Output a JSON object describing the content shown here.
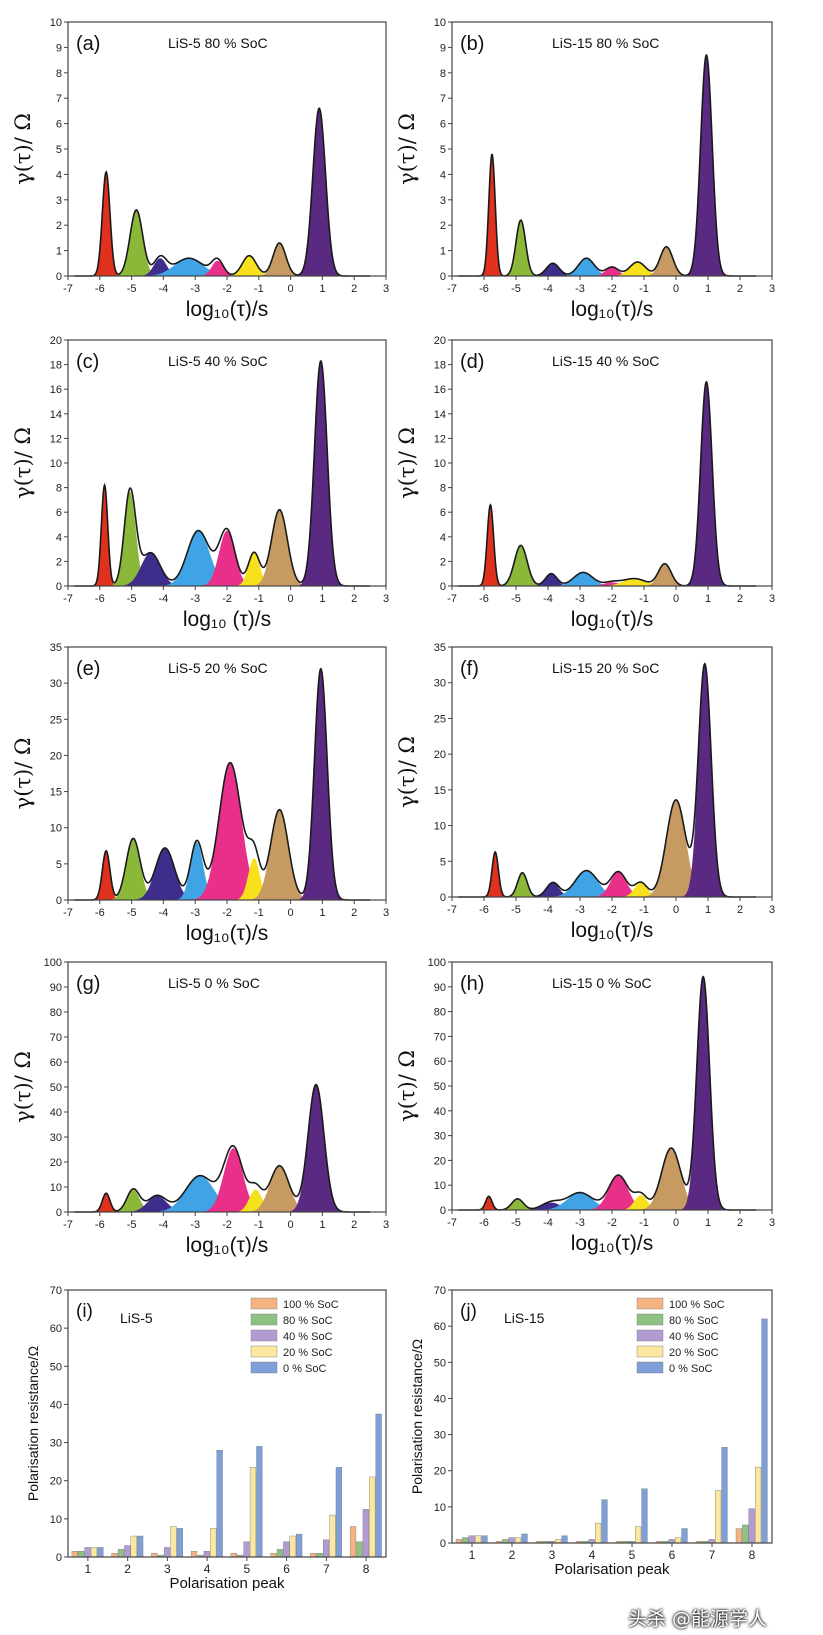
{
  "peak_colors": [
    "#e0301e",
    "#8cb83a",
    "#3f2d8c",
    "#3fa3e6",
    "#e8308a",
    "#f7e01c",
    "#c79a62",
    "#5a2a82"
  ],
  "curve_color": "#1a1a1a",
  "watermark": "头杀 @能源学人",
  "chart_data": [
    {
      "type": "area",
      "panel": "(a)",
      "title": "LiS-5 80 % SoC",
      "xlabel": "log₁₀(τ)/s",
      "ylabel": "γ(τ)/ Ω",
      "xlim": [
        -7,
        3
      ],
      "ylim": [
        0,
        10
      ],
      "xticks": [
        "-7",
        "-6",
        "-5",
        "-4",
        "-3",
        "-2",
        "-1",
        "0",
        "1",
        "2",
        "3"
      ],
      "yticks": [
        "0",
        "1",
        "2",
        "3",
        "4",
        "5",
        "6",
        "7",
        "8",
        "9",
        "10"
      ],
      "peaks": [
        {
          "name": "peak 1",
          "center": -5.8,
          "height": 4.1,
          "width": 0.12
        },
        {
          "name": "peak 2",
          "center": -4.85,
          "height": 2.6,
          "width": 0.2
        },
        {
          "name": "peak 3",
          "center": -4.1,
          "height": 0.7,
          "width": 0.2
        },
        {
          "name": "peak 4",
          "center": -3.2,
          "height": 0.7,
          "width": 0.45
        },
        {
          "name": "peak 5",
          "center": -2.3,
          "height": 0.6,
          "width": 0.18
        },
        {
          "name": "peak 6",
          "center": -1.3,
          "height": 0.8,
          "width": 0.22
        },
        {
          "name": "peak 7",
          "center": -0.35,
          "height": 1.3,
          "width": 0.2
        },
        {
          "name": "peak 8",
          "center": 0.9,
          "height": 6.6,
          "width": 0.2
        }
      ]
    },
    {
      "type": "area",
      "panel": "(b)",
      "title": "LiS-15 80 % SoC",
      "xlabel": "log₁₀(τ)/s",
      "ylabel": "γ(τ)/ Ω",
      "xlim": [
        -7,
        3
      ],
      "ylim": [
        0,
        10
      ],
      "xticks": [
        "-7",
        "-6",
        "-5",
        "-4",
        "-3",
        "-2",
        "-1",
        "0",
        "1",
        "2",
        "3"
      ],
      "yticks": [
        "0",
        "1",
        "2",
        "3",
        "4",
        "5",
        "6",
        "7",
        "8",
        "9",
        "10"
      ],
      "peaks": [
        {
          "name": "peak 1",
          "center": -5.75,
          "height": 4.8,
          "width": 0.1
        },
        {
          "name": "peak 2",
          "center": -4.85,
          "height": 2.2,
          "width": 0.15
        },
        {
          "name": "peak 3",
          "center": -3.85,
          "height": 0.5,
          "width": 0.2
        },
        {
          "name": "peak 4",
          "center": -2.8,
          "height": 0.7,
          "width": 0.25
        },
        {
          "name": "peak 5",
          "center": -2.0,
          "height": 0.35,
          "width": 0.2
        },
        {
          "name": "peak 6",
          "center": -1.2,
          "height": 0.55,
          "width": 0.25
        },
        {
          "name": "peak 7",
          "center": -0.3,
          "height": 1.15,
          "width": 0.2
        },
        {
          "name": "peak 8",
          "center": 0.95,
          "height": 8.7,
          "width": 0.18
        }
      ]
    },
    {
      "type": "area",
      "panel": "(c)",
      "title": "LiS-5 40 % SoC",
      "xlabel": "log₁₀ (τ)/s",
      "ylabel": "γ(τ)/ Ω",
      "xlim": [
        -7,
        3
      ],
      "ylim": [
        0,
        20
      ],
      "xticks": [
        "-7",
        "-6",
        "-5",
        "-4",
        "-3",
        "-2",
        "-1",
        "0",
        "1",
        "2",
        "3"
      ],
      "yticks": [
        "0",
        "2",
        "4",
        "6",
        "8",
        "10",
        "12",
        "14",
        "16",
        "18",
        "20"
      ],
      "peaks": [
        {
          "name": "peak 1",
          "center": -5.85,
          "height": 8.2,
          "width": 0.1
        },
        {
          "name": "peak 2",
          "center": -5.05,
          "height": 7.7,
          "width": 0.18
        },
        {
          "name": "peak 3",
          "center": -4.4,
          "height": 2.7,
          "width": 0.3
        },
        {
          "name": "peak 4",
          "center": -2.9,
          "height": 4.5,
          "width": 0.35
        },
        {
          "name": "peak 5",
          "center": -2.0,
          "height": 4.5,
          "width": 0.25
        },
        {
          "name": "peak 6",
          "center": -1.15,
          "height": 2.7,
          "width": 0.18
        },
        {
          "name": "peak 7",
          "center": -0.35,
          "height": 6.2,
          "width": 0.25
        },
        {
          "name": "peak 8",
          "center": 0.95,
          "height": 18.3,
          "width": 0.2
        }
      ]
    },
    {
      "type": "area",
      "panel": "(d)",
      "title": "LiS-15 40 % SoC",
      "xlabel": "log₁₀(τ)/s",
      "ylabel": "γ(τ)/ Ω",
      "xlim": [
        -7,
        3
      ],
      "ylim": [
        0,
        20
      ],
      "xticks": [
        "-7",
        "-6",
        "-5",
        "-4",
        "-3",
        "-2",
        "-1",
        "0",
        "1",
        "2",
        "3"
      ],
      "yticks": [
        "0",
        "2",
        "4",
        "6",
        "8",
        "10",
        "12",
        "14",
        "16",
        "18",
        "20"
      ],
      "peaks": [
        {
          "name": "peak 1",
          "center": -5.8,
          "height": 6.6,
          "width": 0.1
        },
        {
          "name": "peak 2",
          "center": -4.85,
          "height": 3.3,
          "width": 0.2
        },
        {
          "name": "peak 3",
          "center": -3.9,
          "height": 1.0,
          "width": 0.18
        },
        {
          "name": "peak 4",
          "center": -2.9,
          "height": 1.1,
          "width": 0.3
        },
        {
          "name": "peak 5",
          "center": -2.0,
          "height": 0.3,
          "width": 0.25
        },
        {
          "name": "peak 6",
          "center": -1.3,
          "height": 0.6,
          "width": 0.35
        },
        {
          "name": "peak 7",
          "center": -0.35,
          "height": 1.8,
          "width": 0.2
        },
        {
          "name": "peak 8",
          "center": 0.95,
          "height": 16.6,
          "width": 0.18
        }
      ]
    },
    {
      "type": "area",
      "panel": "(e)",
      "title": "LiS-5 20 % SoC",
      "xlabel": "log₁₀(τ)/s",
      "ylabel": "γ(τ)/ Ω",
      "xlim": [
        -7,
        3
      ],
      "ylim": [
        0,
        35
      ],
      "xticks": [
        "-7",
        "-6",
        "-5",
        "-4",
        "-3",
        "-2",
        "-1",
        "0",
        "1",
        "2",
        "3"
      ],
      "yticks": [
        "0",
        "5",
        "10",
        "15",
        "20",
        "25",
        "30",
        "35"
      ],
      "peaks": [
        {
          "name": "peak 1",
          "center": -5.8,
          "height": 6.8,
          "width": 0.12
        },
        {
          "name": "peak 2",
          "center": -4.95,
          "height": 8.5,
          "width": 0.22
        },
        {
          "name": "peak 3",
          "center": -3.95,
          "height": 7.2,
          "width": 0.3
        },
        {
          "name": "peak 4",
          "center": -2.95,
          "height": 8.0,
          "width": 0.2
        },
        {
          "name": "peak 5",
          "center": -1.9,
          "height": 19.0,
          "width": 0.35
        },
        {
          "name": "peak 6",
          "center": -1.15,
          "height": 5.8,
          "width": 0.18
        },
        {
          "name": "peak 7",
          "center": -0.35,
          "height": 12.5,
          "width": 0.28
        },
        {
          "name": "peak 8",
          "center": 0.95,
          "height": 32.0,
          "width": 0.2
        }
      ]
    },
    {
      "type": "area",
      "panel": "(f)",
      "title": "LiS-15 20 % SoC",
      "xlabel": "log₁₀(τ)/s",
      "ylabel": "γ(τ)/ Ω",
      "xlim": [
        -7,
        3
      ],
      "ylim": [
        0,
        35
      ],
      "xticks": [
        "-7",
        "-6",
        "-5",
        "-4",
        "-3",
        "-2",
        "-1",
        "0",
        "1",
        "2",
        "3"
      ],
      "yticks": [
        "0",
        "5",
        "10",
        "15",
        "20",
        "25",
        "30",
        "35"
      ],
      "peaks": [
        {
          "name": "peak 1",
          "center": -5.65,
          "height": 6.3,
          "width": 0.1
        },
        {
          "name": "peak 2",
          "center": -4.8,
          "height": 3.4,
          "width": 0.15
        },
        {
          "name": "peak 3",
          "center": -3.85,
          "height": 2.0,
          "width": 0.2
        },
        {
          "name": "peak 4",
          "center": -2.8,
          "height": 3.7,
          "width": 0.35
        },
        {
          "name": "peak 5",
          "center": -1.8,
          "height": 3.5,
          "width": 0.25
        },
        {
          "name": "peak 6",
          "center": -1.1,
          "height": 2.0,
          "width": 0.2
        },
        {
          "name": "peak 7",
          "center": 0.0,
          "height": 13.6,
          "width": 0.3
        },
        {
          "name": "peak 8",
          "center": 0.9,
          "height": 32.5,
          "width": 0.2
        }
      ]
    },
    {
      "type": "area",
      "panel": "(g)",
      "title": "LiS-5  0 % SoC",
      "xlabel": "log₁₀(τ)/s",
      "ylabel": "γ(τ)/ Ω",
      "xlim": [
        -7,
        3
      ],
      "ylim": [
        0,
        100
      ],
      "xticks": [
        "-7",
        "-6",
        "-5",
        "-4",
        "-3",
        "-2",
        "-1",
        "0",
        "1",
        "2",
        "3"
      ],
      "yticks": [
        "0",
        "10",
        "20",
        "30",
        "40",
        "50",
        "60",
        "70",
        "80",
        "90",
        "100"
      ],
      "peaks": [
        {
          "name": "peak 1",
          "center": -5.8,
          "height": 7.5,
          "width": 0.12
        },
        {
          "name": "peak 2",
          "center": -4.95,
          "height": 9.0,
          "width": 0.2
        },
        {
          "name": "peak 3",
          "center": -4.2,
          "height": 6.5,
          "width": 0.3
        },
        {
          "name": "peak 4",
          "center": -2.85,
          "height": 14.5,
          "width": 0.45
        },
        {
          "name": "peak 5",
          "center": -1.8,
          "height": 25.5,
          "width": 0.3
        },
        {
          "name": "peak 6",
          "center": -1.1,
          "height": 9.0,
          "width": 0.2
        },
        {
          "name": "peak 7",
          "center": -0.35,
          "height": 18.5,
          "width": 0.3
        },
        {
          "name": "peak 8",
          "center": 0.8,
          "height": 51.0,
          "width": 0.25
        }
      ]
    },
    {
      "type": "area",
      "panel": "(h)",
      "title": "LiS-15 0 % SoC",
      "xlabel": "log₁₀(τ)/s",
      "ylabel": "γ(τ)/ Ω",
      "xlim": [
        -7,
        3
      ],
      "ylim": [
        0,
        100
      ],
      "xticks": [
        "-7",
        "-6",
        "-5",
        "-4",
        "-3",
        "-2",
        "-1",
        "0",
        "1",
        "2",
        "3"
      ],
      "yticks": [
        "0",
        "10",
        "20",
        "30",
        "40",
        "50",
        "60",
        "70",
        "80",
        "90",
        "100"
      ],
      "peaks": [
        {
          "name": "peak 1",
          "center": -5.85,
          "height": 5.5,
          "width": 0.1
        },
        {
          "name": "peak 2",
          "center": -4.95,
          "height": 4.5,
          "width": 0.18
        },
        {
          "name": "peak 3",
          "center": -3.9,
          "height": 3.0,
          "width": 0.3
        },
        {
          "name": "peak 4",
          "center": -3.0,
          "height": 7.0,
          "width": 0.4
        },
        {
          "name": "peak 5",
          "center": -1.8,
          "height": 14.0,
          "width": 0.3
        },
        {
          "name": "peak 6",
          "center": -1.1,
          "height": 6.0,
          "width": 0.2
        },
        {
          "name": "peak 7",
          "center": -0.15,
          "height": 25.0,
          "width": 0.3
        },
        {
          "name": "peak 8",
          "center": 0.85,
          "height": 94.0,
          "width": 0.2
        }
      ]
    },
    {
      "type": "bar",
      "panel": "(i)",
      "title": "LiS-5",
      "xlabel": "Polarisation peak",
      "ylabel": "Polarisation resistance/Ω",
      "ylim": [
        0,
        70
      ],
      "yticks": [
        "0",
        "10",
        "20",
        "30",
        "40",
        "50",
        "60",
        "70"
      ],
      "categories": [
        "1",
        "2",
        "3",
        "4",
        "5",
        "6",
        "7",
        "8"
      ],
      "series": [
        {
          "name": "100 % SoC",
          "color": "#f5b383",
          "values": [
            1.5,
            1.0,
            1.0,
            1.5,
            1.0,
            1.0,
            1.0,
            8.0
          ]
        },
        {
          "name": "80 % SoC",
          "color": "#8ec283",
          "values": [
            1.5,
            2.0,
            0.5,
            0.5,
            0.5,
            2.0,
            1.0,
            4.0
          ]
        },
        {
          "name": "40 % SoC",
          "color": "#b29bd3",
          "values": [
            2.5,
            3.0,
            2.5,
            1.5,
            4.0,
            4.0,
            4.5,
            12.5
          ]
        },
        {
          "name": "20 % SoC",
          "color": "#fbe7a0",
          "values": [
            2.5,
            5.5,
            8.0,
            7.5,
            23.5,
            5.5,
            11.0,
            21.0
          ]
        },
        {
          "name": "0 % SoC",
          "color": "#7f9fd8",
          "values": [
            2.5,
            5.5,
            7.5,
            28.0,
            29.0,
            6.0,
            23.5,
            37.5
          ]
        }
      ]
    },
    {
      "type": "bar",
      "panel": "(j)",
      "title": "LiS-15",
      "xlabel": "Polarisation peak",
      "ylabel": "Polarisation resistance/Ω",
      "ylim": [
        0,
        70
      ],
      "yticks": [
        "0",
        "10",
        "20",
        "30",
        "40",
        "50",
        "60",
        "70"
      ],
      "categories": [
        "1",
        "2",
        "3",
        "4",
        "5",
        "6",
        "7",
        "8"
      ],
      "series": [
        {
          "name": "100 % SoC",
          "color": "#f5b383",
          "values": [
            1.0,
            0.5,
            0.5,
            0.5,
            0.5,
            0.5,
            0.5,
            4.0
          ]
        },
        {
          "name": "80 % SoC",
          "color": "#8ec283",
          "values": [
            1.5,
            1.0,
            0.5,
            0.5,
            0.5,
            0.5,
            0.5,
            5.0
          ]
        },
        {
          "name": "40 % SoC",
          "color": "#b29bd3",
          "values": [
            2.0,
            1.5,
            0.5,
            1.0,
            0.5,
            1.0,
            1.0,
            9.5
          ]
        },
        {
          "name": "20 % SoC",
          "color": "#fbe7a0",
          "values": [
            2.0,
            1.5,
            1.0,
            5.5,
            4.5,
            1.5,
            14.5,
            21.0
          ]
        },
        {
          "name": "0 % SoC",
          "color": "#7f9fd8",
          "values": [
            2.0,
            2.5,
            2.0,
            12.0,
            15.0,
            4.0,
            26.5,
            62.0
          ]
        }
      ]
    }
  ]
}
